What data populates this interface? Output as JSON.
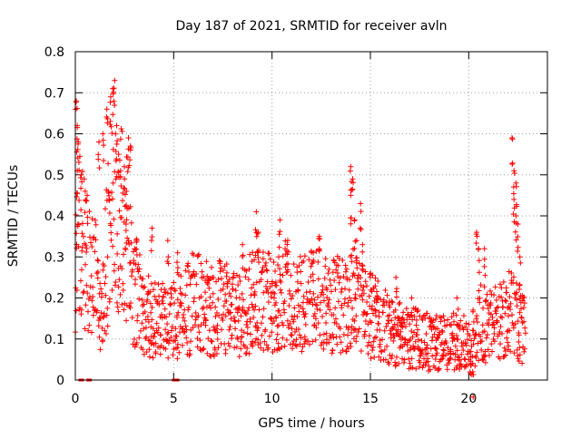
{
  "chart_data": {
    "type": "scatter",
    "title": "Day 187 of 2021, SRMTID for receiver avln",
    "xlabel": "GPS time / hours",
    "ylabel": "SRMTID / TECUs",
    "xlim": [
      0,
      24
    ],
    "ylim": [
      0,
      0.8
    ],
    "xticks": [
      0,
      5,
      10,
      15,
      20
    ],
    "xtick_labels": [
      "0",
      "5",
      "10",
      "15",
      "20"
    ],
    "yticks": [
      0,
      0.1,
      0.2,
      0.3,
      0.4,
      0.5,
      0.6,
      0.7,
      0.8
    ],
    "ytick_labels": [
      "0",
      "0.1",
      "0.2",
      "0.3",
      "0.4",
      "0.5",
      "0.6",
      "0.7",
      "0.8"
    ],
    "grid": true,
    "marker": "+",
    "marker_color": "#ff0000",
    "series": [
      {
        "name": "SRMTID",
        "trend": [
          [
            0.0,
            0.3
          ],
          [
            0.1,
            0.38
          ],
          [
            0.3,
            0.32
          ],
          [
            0.6,
            0.3
          ],
          [
            1.0,
            0.24
          ],
          [
            1.3,
            0.2
          ],
          [
            1.6,
            0.3
          ],
          [
            1.9,
            0.42
          ],
          [
            2.2,
            0.4
          ],
          [
            2.6,
            0.36
          ],
          [
            2.9,
            0.24
          ],
          [
            3.3,
            0.19
          ],
          [
            3.8,
            0.15
          ],
          [
            4.3,
            0.14
          ],
          [
            4.8,
            0.14
          ],
          [
            5.5,
            0.16
          ],
          [
            6.0,
            0.19
          ],
          [
            6.5,
            0.18
          ],
          [
            7.0,
            0.17
          ],
          [
            7.5,
            0.18
          ],
          [
            8.0,
            0.17
          ],
          [
            8.5,
            0.17
          ],
          [
            9.0,
            0.19
          ],
          [
            9.5,
            0.2
          ],
          [
            10.0,
            0.19
          ],
          [
            10.5,
            0.21
          ],
          [
            11.0,
            0.2
          ],
          [
            11.5,
            0.18
          ],
          [
            12.0,
            0.19
          ],
          [
            12.5,
            0.2
          ],
          [
            13.0,
            0.19
          ],
          [
            13.5,
            0.18
          ],
          [
            14.0,
            0.2
          ],
          [
            14.5,
            0.18
          ],
          [
            15.0,
            0.16
          ],
          [
            15.5,
            0.14
          ],
          [
            16.0,
            0.12
          ],
          [
            16.5,
            0.11
          ],
          [
            17.0,
            0.1
          ],
          [
            17.5,
            0.1
          ],
          [
            18.0,
            0.09
          ],
          [
            18.5,
            0.09
          ],
          [
            19.0,
            0.09
          ],
          [
            19.5,
            0.1
          ],
          [
            20.0,
            0.08
          ],
          [
            20.5,
            0.14
          ],
          [
            21.0,
            0.13
          ],
          [
            21.5,
            0.14
          ],
          [
            22.0,
            0.17
          ],
          [
            22.5,
            0.15
          ],
          [
            22.9,
            0.12
          ]
        ],
        "spikes": [
          [
            0.05,
            0.68
          ],
          [
            0.1,
            0.62
          ],
          [
            0.15,
            0.58
          ],
          [
            0.1,
            0.51
          ],
          [
            0.3,
            0.5
          ],
          [
            0.5,
            0.46
          ],
          [
            0.6,
            0.45
          ],
          [
            1.2,
            0.58
          ],
          [
            1.4,
            0.6
          ],
          [
            1.6,
            0.66
          ],
          [
            1.8,
            0.69
          ],
          [
            1.9,
            0.71
          ],
          [
            2.0,
            0.73
          ],
          [
            2.1,
            0.62
          ],
          [
            2.2,
            0.55
          ],
          [
            2.3,
            0.51
          ],
          [
            2.5,
            0.49
          ],
          [
            2.6,
            0.46
          ],
          [
            2.7,
            0.59
          ],
          [
            2.8,
            0.57
          ],
          [
            3.1,
            0.34
          ],
          [
            3.9,
            0.37
          ],
          [
            4.7,
            0.34
          ],
          [
            5.2,
            0.31
          ],
          [
            8.5,
            0.33
          ],
          [
            9.2,
            0.41
          ],
          [
            9.3,
            0.36
          ],
          [
            10.4,
            0.39
          ],
          [
            10.8,
            0.34
          ],
          [
            12.1,
            0.31
          ],
          [
            12.4,
            0.35
          ],
          [
            14.0,
            0.52
          ],
          [
            14.1,
            0.49
          ],
          [
            14.0,
            0.45
          ],
          [
            14.2,
            0.39
          ],
          [
            14.5,
            0.43
          ],
          [
            14.3,
            0.34
          ],
          [
            14.6,
            0.33
          ],
          [
            16.3,
            0.25
          ],
          [
            17.1,
            0.2
          ],
          [
            19.4,
            0.2
          ],
          [
            20.1,
            0.04
          ],
          [
            20.2,
            0.02
          ],
          [
            20.4,
            0.36
          ],
          [
            20.5,
            0.32
          ],
          [
            20.8,
            0.32
          ],
          [
            22.2,
            0.59
          ],
          [
            22.3,
            0.51
          ],
          [
            22.4,
            0.48
          ],
          [
            22.3,
            0.44
          ],
          [
            22.4,
            0.4
          ],
          [
            22.5,
            0.38
          ],
          [
            22.6,
            0.3
          ]
        ],
        "zeros": [
          [
            0.3,
            0.0
          ],
          [
            0.7,
            0.0
          ],
          [
            5.05,
            0.0
          ],
          [
            5.15,
            0.0
          ]
        ]
      }
    ]
  }
}
